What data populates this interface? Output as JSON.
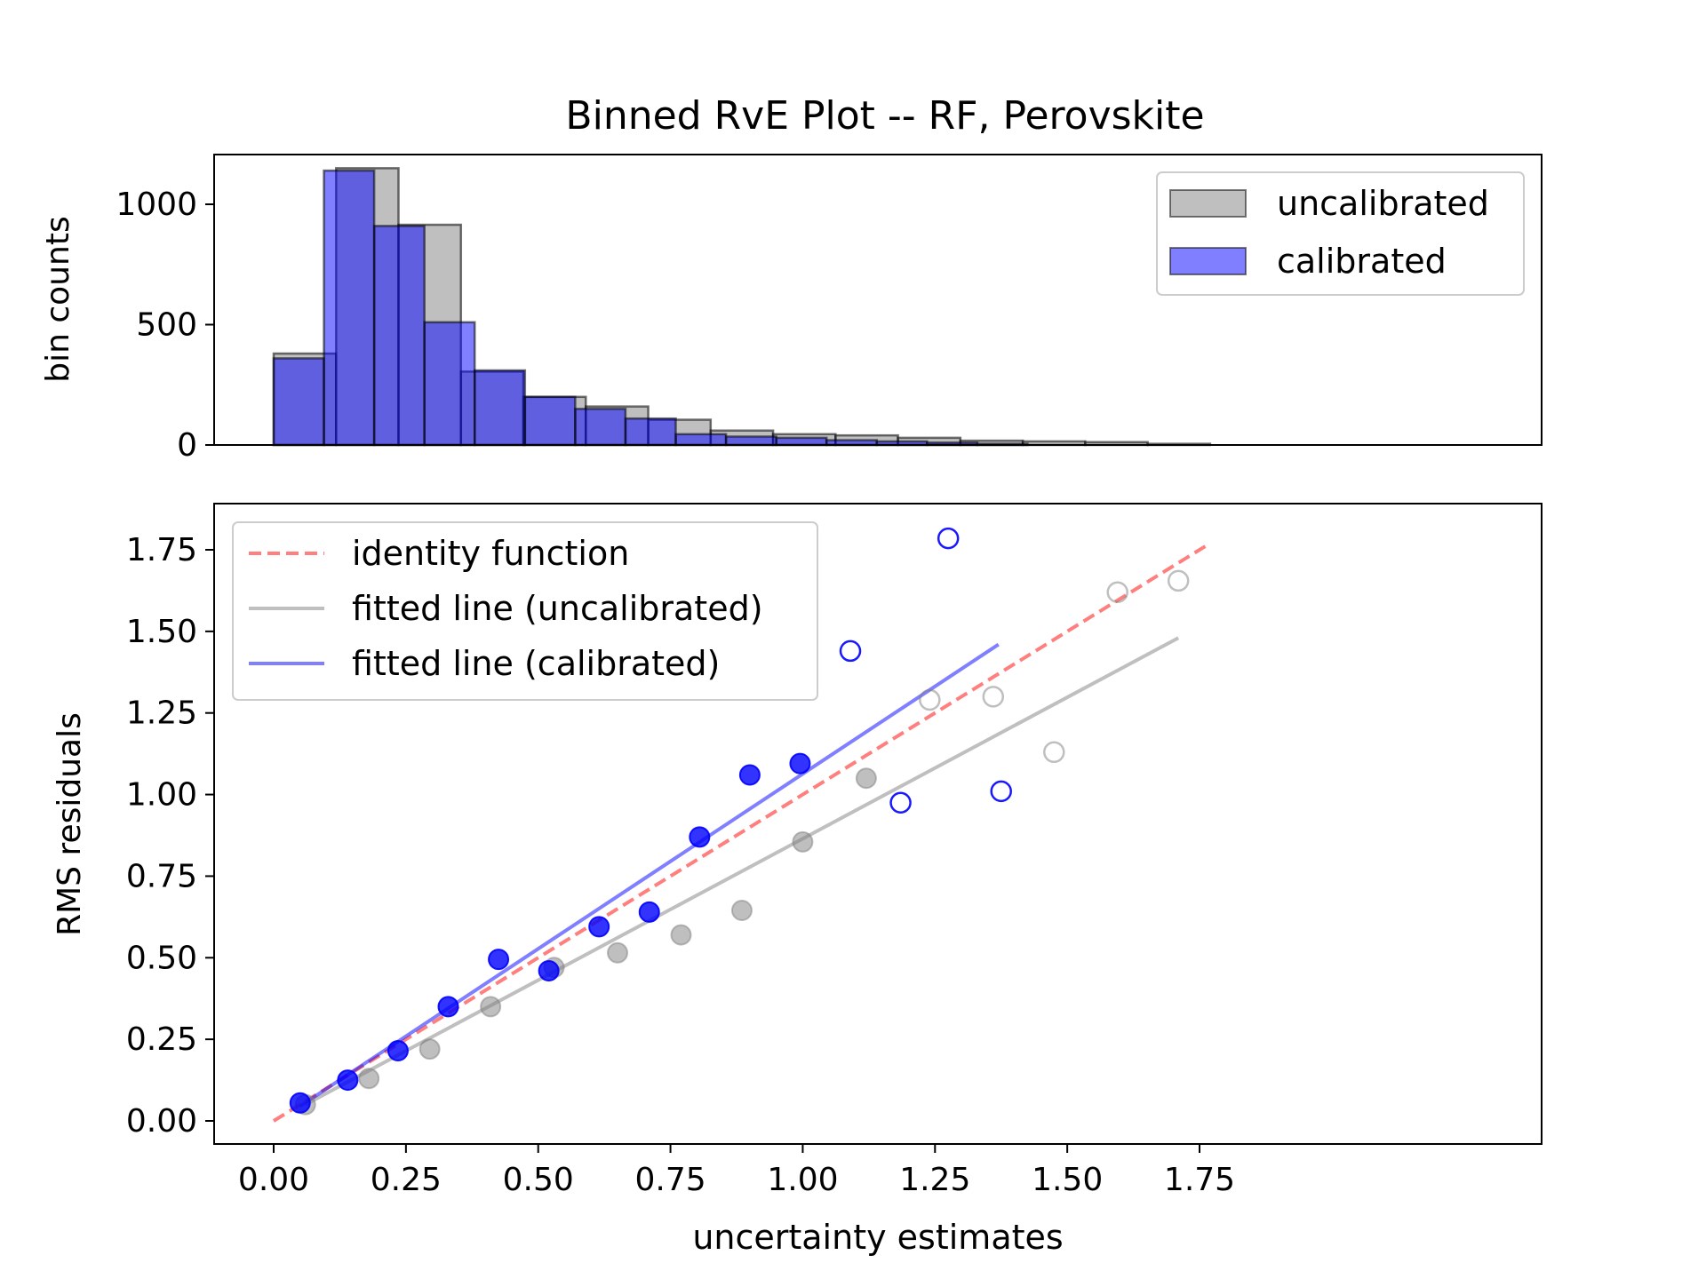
{
  "chart_data": [
    {
      "type": "bar",
      "title": "Binned RvE Plot -- RF, Perovskite",
      "xlabel": "",
      "ylabel": "bin counts",
      "ylim": [
        0,
        1200
      ],
      "yticks": [
        0,
        500,
        1000
      ],
      "grid": false,
      "legend_position": "top-right",
      "series": [
        {
          "name": "uncalibrated",
          "color": "#808080",
          "bins": [
            {
              "x0": 0.0,
              "x1": 0.118,
              "value": 380
            },
            {
              "x0": 0.118,
              "x1": 0.236,
              "value": 1150
            },
            {
              "x0": 0.236,
              "x1": 0.354,
              "value": 915
            },
            {
              "x0": 0.354,
              "x1": 0.472,
              "value": 305
            },
            {
              "x0": 0.472,
              "x1": 0.59,
              "value": 200
            },
            {
              "x0": 0.59,
              "x1": 0.708,
              "value": 160
            },
            {
              "x0": 0.708,
              "x1": 0.826,
              "value": 105
            },
            {
              "x0": 0.826,
              "x1": 0.944,
              "value": 60
            },
            {
              "x0": 0.944,
              "x1": 1.062,
              "value": 45
            },
            {
              "x0": 1.062,
              "x1": 1.18,
              "value": 40
            },
            {
              "x0": 1.18,
              "x1": 1.298,
              "value": 30
            },
            {
              "x0": 1.298,
              "x1": 1.416,
              "value": 18
            },
            {
              "x0": 1.416,
              "x1": 1.534,
              "value": 15
            },
            {
              "x0": 1.534,
              "x1": 1.652,
              "value": 12
            },
            {
              "x0": 1.652,
              "x1": 1.77,
              "value": 5
            }
          ]
        },
        {
          "name": "calibrated",
          "color": "#0000ff",
          "bins": [
            {
              "x0": 0.0,
              "x1": 0.095,
              "value": 360
            },
            {
              "x0": 0.095,
              "x1": 0.19,
              "value": 1140
            },
            {
              "x0": 0.19,
              "x1": 0.285,
              "value": 910
            },
            {
              "x0": 0.285,
              "x1": 0.38,
              "value": 510
            },
            {
              "x0": 0.38,
              "x1": 0.475,
              "value": 310
            },
            {
              "x0": 0.475,
              "x1": 0.57,
              "value": 200
            },
            {
              "x0": 0.57,
              "x1": 0.665,
              "value": 150
            },
            {
              "x0": 0.665,
              "x1": 0.76,
              "value": 110
            },
            {
              "x0": 0.76,
              "x1": 0.855,
              "value": 45
            },
            {
              "x0": 0.855,
              "x1": 0.95,
              "value": 35
            },
            {
              "x0": 0.95,
              "x1": 1.045,
              "value": 30
            },
            {
              "x0": 1.045,
              "x1": 1.14,
              "value": 20
            },
            {
              "x0": 1.14,
              "x1": 1.235,
              "value": 15
            },
            {
              "x0": 1.235,
              "x1": 1.33,
              "value": 10
            },
            {
              "x0": 1.33,
              "x1": 1.425,
              "value": 5
            }
          ]
        }
      ]
    },
    {
      "type": "scatter",
      "title": "",
      "xlabel": "uncertainty estimates",
      "ylabel": "RMS residuals",
      "xlim": [
        -0.09,
        1.86
      ],
      "ylim": [
        -0.09,
        1.88
      ],
      "xticks": [
        "0.00",
        "0.25",
        "0.50",
        "0.75",
        "1.00",
        "1.25",
        "1.50",
        "1.75"
      ],
      "yticks": [
        "0.00",
        "0.25",
        "0.50",
        "0.75",
        "1.00",
        "1.25",
        "1.50",
        "1.75"
      ],
      "grid": false,
      "legend_position": "top-left",
      "lines": [
        {
          "name": "identity function",
          "color": "#ff0000",
          "style": "dashed",
          "x": [
            0.0,
            1.77
          ],
          "y": [
            0.0,
            1.77
          ]
        },
        {
          "name": "fitted line (uncalibrated)",
          "color": "#808080",
          "style": "solid",
          "x": [
            0.06,
            1.71
          ],
          "y": [
            0.05,
            1.48
          ]
        },
        {
          "name": "fitted line (calibrated)",
          "color": "#0000ff",
          "style": "solid",
          "x": [
            0.05,
            1.37
          ],
          "y": [
            0.045,
            1.46
          ]
        }
      ],
      "series": [
        {
          "color": "#808080",
          "filled": [
            [
              0.06,
              0.05
            ],
            [
              0.18,
              0.13
            ],
            [
              0.295,
              0.22
            ],
            [
              0.41,
              0.35
            ],
            [
              0.53,
              0.47
            ],
            [
              0.65,
              0.515
            ],
            [
              0.77,
              0.57
            ],
            [
              0.885,
              0.645
            ],
            [
              1.0,
              0.855
            ],
            [
              1.12,
              1.05
            ]
          ],
          "hollow": [
            [
              1.24,
              1.29
            ],
            [
              1.36,
              1.3
            ],
            [
              1.475,
              1.13
            ],
            [
              1.595,
              1.62
            ],
            [
              1.71,
              1.655
            ]
          ]
        },
        {
          "color": "#0000ff",
          "filled": [
            [
              0.05,
              0.055
            ],
            [
              0.14,
              0.125
            ],
            [
              0.235,
              0.215
            ],
            [
              0.33,
              0.35
            ],
            [
              0.425,
              0.495
            ],
            [
              0.52,
              0.46
            ],
            [
              0.615,
              0.595
            ],
            [
              0.71,
              0.64
            ],
            [
              0.805,
              0.87
            ],
            [
              0.9,
              1.06
            ],
            [
              0.995,
              1.095
            ]
          ],
          "hollow": [
            [
              1.09,
              1.44
            ],
            [
              1.185,
              0.975
            ],
            [
              1.275,
              1.785
            ],
            [
              1.375,
              1.01
            ]
          ]
        }
      ]
    }
  ]
}
